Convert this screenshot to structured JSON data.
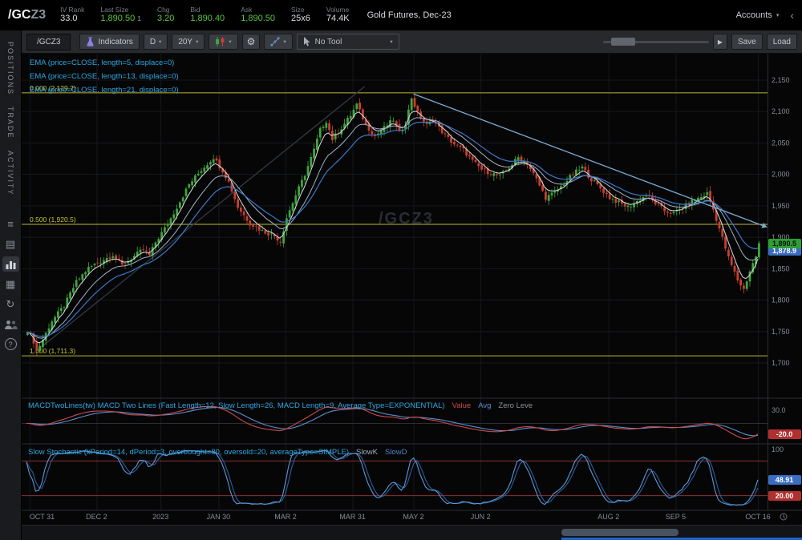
{
  "header": {
    "symbol_root": "/GC",
    "symbol_suffix": "Z3",
    "fields": [
      {
        "label": "IV Rank",
        "value": "33.0",
        "color": "white"
      },
      {
        "label": "Last Size",
        "value": "1,890.50",
        "extra": "1",
        "color": "green"
      },
      {
        "label": "Chg",
        "value": "3.20",
        "color": "green"
      },
      {
        "label": "Bid",
        "value": "1,890.40",
        "color": "green"
      },
      {
        "label": "Ask",
        "value": "1,890.50",
        "color": "green"
      },
      {
        "label": "Size",
        "value": "25x6",
        "color": "white"
      },
      {
        "label": "Volume",
        "value": "74.4K",
        "color": "white"
      }
    ],
    "description": "Gold Futures, Dec-23",
    "accounts_label": "Accounts"
  },
  "sidebar": {
    "tabs": [
      "POSITIONS",
      "TRADE",
      "ACTIVITY"
    ],
    "icons": [
      "watchlist-icon",
      "orders-icon",
      "chart-icon",
      "grid-icon",
      "refresh-icon",
      "people-icon",
      "help-icon"
    ]
  },
  "toolbar": {
    "symbol_tab": "/GCZ3",
    "indicators_label": "Indicators",
    "timeframe": "D",
    "range": "20Y",
    "tool_label": "No Tool",
    "save_label": "Save",
    "load_label": "Load"
  },
  "studies": {
    "ema_labels": [
      "EMA (price=CLOSE, length=5, displace=0)",
      "EMA (price=CLOSE, length=13, displace=0)",
      "EMA (price=CLOSE, length=21, displace=0)"
    ],
    "macd_label": "MACDTwoLines(tw) MACD Two Lines (Fast Length=12, Slow Length=26, MACD Length=9, Average Type=EXPONENTIAL)",
    "macd_legend": {
      "value": "Value",
      "avg": "Avg",
      "zero": "Zero Leve"
    },
    "stoch_label": "Slow Stochastic (kPeriod=14, dPeriod=3, overbought=80, oversold=20, averageType=SIMPLE)",
    "stoch_legend": {
      "slowk": "SlowK",
      "slowd": "SlowD"
    }
  },
  "chart_data": {
    "type": "candlestick",
    "symbol_watermark": "/GCZ3",
    "last_price": 1890.5,
    "last_price_badge": "1,890.5",
    "ema_badge": "1,878.9",
    "ema_badge_price": 1878.9,
    "price_axis": {
      "ticks": [
        2150,
        2100,
        2050,
        2000,
        1950,
        1900,
        1850,
        1800,
        1750,
        1700
      ]
    },
    "x_labels": [
      {
        "day": 1,
        "label": "OCT 31"
      },
      {
        "day": 23,
        "label": "DEC 2"
      },
      {
        "day": 44,
        "label": "2023"
      },
      {
        "day": 63,
        "label": "JAN 30"
      },
      {
        "day": 85,
        "label": "MAR 2"
      },
      {
        "day": 107,
        "label": "MAR 31"
      },
      {
        "day": 127,
        "label": "MAY 2"
      },
      {
        "day": 149,
        "label": "JUN 2"
      },
      {
        "day": 191,
        "label": "AUG 2"
      },
      {
        "day": 213,
        "label": "SEP 5"
      },
      {
        "day": 240,
        "label": "OCT 16"
      }
    ],
    "fib_levels": [
      {
        "label": "0.000 (2,129.7)",
        "price": 2129.7
      },
      {
        "label": "0.500 (1,920.5)",
        "price": 1920.5
      },
      {
        "label": "1.000 (1,711.3)",
        "price": 1711.3
      }
    ],
    "trendlines": [
      {
        "from": [
          2,
          1714
        ],
        "to": [
          111,
          2140
        ],
        "color": "#343a42",
        "arrow": false
      },
      {
        "from": [
          127,
          2128
        ],
        "to": [
          243,
          1916
        ],
        "color": "#79aed6",
        "arrow": true
      }
    ],
    "macd_axis": {
      "top": "30.0",
      "value_badge": "-20.0"
    },
    "stoch_axis": {
      "top": "100",
      "overbought": 80,
      "oversold": 20,
      "slowk_badge": "48.91",
      "oversold_badge": "20.00"
    },
    "colors": {
      "up": "#3fa63c",
      "down": "#c8402f",
      "ema5": "#d9dde2",
      "ema13": "#9fb3c8",
      "ema21": "#3c78c8",
      "fib": "#b9b931",
      "macd_value": "#cc4b4b",
      "macd_avg": "#5b8fd0",
      "stoch_k": "#5b9bd5",
      "stoch_d": "#2e5e9e"
    },
    "keyframes": [
      [
        0,
        1752
      ],
      [
        2,
        1734
      ],
      [
        3,
        1719
      ],
      [
        5,
        1737
      ],
      [
        8,
        1767
      ],
      [
        12,
        1791
      ],
      [
        16,
        1829
      ],
      [
        20,
        1851
      ],
      [
        24,
        1862
      ],
      [
        28,
        1872
      ],
      [
        31,
        1855
      ],
      [
        34,
        1866
      ],
      [
        38,
        1881
      ],
      [
        40,
        1871
      ],
      [
        42,
        1892
      ],
      [
        46,
        1921
      ],
      [
        50,
        1957
      ],
      [
        53,
        1984
      ],
      [
        57,
        2007
      ],
      [
        61,
        2027
      ],
      [
        64,
        2006
      ],
      [
        66,
        1988
      ],
      [
        69,
        1948
      ],
      [
        73,
        1922
      ],
      [
        77,
        1910
      ],
      [
        81,
        1902
      ],
      [
        83,
        1893
      ],
      [
        85,
        1931
      ],
      [
        88,
        1967
      ],
      [
        91,
        2000
      ],
      [
        94,
        2039
      ],
      [
        96,
        2071
      ],
      [
        98,
        2085
      ],
      [
        100,
        2056
      ],
      [
        103,
        2074
      ],
      [
        106,
        2094
      ],
      [
        108,
        2111
      ],
      [
        111,
        2079
      ],
      [
        114,
        2061
      ],
      [
        117,
        2074
      ],
      [
        120,
        2087
      ],
      [
        122,
        2066
      ],
      [
        124,
        2081
      ],
      [
        126,
        2122
      ],
      [
        128,
        2097
      ],
      [
        131,
        2078
      ],
      [
        133,
        2086
      ],
      [
        137,
        2062
      ],
      [
        140,
        2048
      ],
      [
        143,
        2039
      ],
      [
        146,
        2021
      ],
      [
        149,
        2008
      ],
      [
        152,
        2002
      ],
      [
        155,
        1997
      ],
      [
        158,
        2011
      ],
      [
        161,
        2027
      ],
      [
        164,
        2017
      ],
      [
        167,
        1992
      ],
      [
        170,
        1963
      ],
      [
        173,
        1971
      ],
      [
        176,
        1985
      ],
      [
        179,
        2001
      ],
      [
        182,
        2011
      ],
      [
        185,
        1992
      ],
      [
        188,
        1978
      ],
      [
        191,
        1963
      ],
      [
        194,
        1955
      ],
      [
        197,
        1948
      ],
      [
        200,
        1957
      ],
      [
        203,
        1967
      ],
      [
        206,
        1954
      ],
      [
        209,
        1942
      ],
      [
        212,
        1938
      ],
      [
        215,
        1947
      ],
      [
        218,
        1957
      ],
      [
        221,
        1964
      ],
      [
        223,
        1970
      ],
      [
        225,
        1944
      ],
      [
        227,
        1914
      ],
      [
        230,
        1867
      ],
      [
        233,
        1832
      ],
      [
        235,
        1817
      ],
      [
        237,
        1846
      ],
      [
        239,
        1870
      ],
      [
        240,
        1890
      ]
    ]
  }
}
